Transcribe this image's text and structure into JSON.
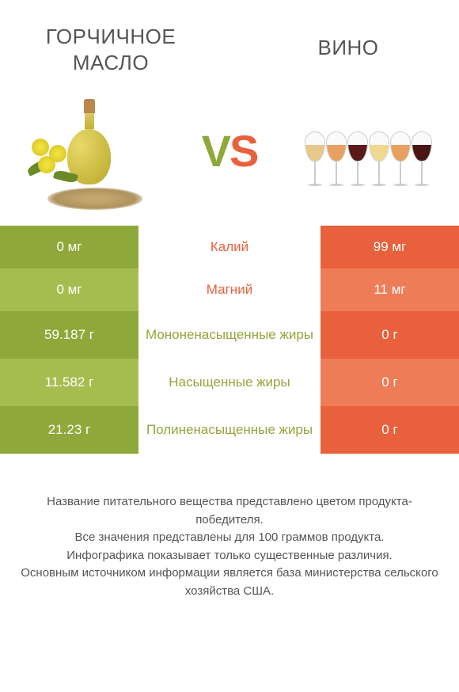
{
  "header": {
    "left_title": "ГОРЧИЧНОЕ МАСЛО",
    "right_title": "ВИНО",
    "vs_v": "V",
    "vs_s": "S"
  },
  "colors": {
    "green_dark": "#8fa83b",
    "green_light": "#a5bd4f",
    "orange_dark": "#e8613c",
    "orange_light": "#ee7d57",
    "text": "#555555",
    "white": "#ffffff"
  },
  "wine_liquids": [
    "#e8c88a",
    "#e8a060",
    "#5a1a1a",
    "#f0d890",
    "#e8a060",
    "#4a1515"
  ],
  "rows": [
    {
      "left": "0 мг",
      "mid": "Калий",
      "right": "99 мг",
      "winner": "right",
      "tall": false
    },
    {
      "left": "0 мг",
      "mid": "Магний",
      "right": "11 мг",
      "winner": "right",
      "tall": false
    },
    {
      "left": "59.187 г",
      "mid": "Мононенасыщенные жиры",
      "right": "0 г",
      "winner": "left",
      "tall": true
    },
    {
      "left": "11.582 г",
      "mid": "Насыщенные жиры",
      "right": "0 г",
      "winner": "left",
      "tall": true
    },
    {
      "left": "21.23 г",
      "mid": "Полиненасыщенные жиры",
      "right": "0 г",
      "winner": "left",
      "tall": true
    }
  ],
  "footer": {
    "line1": "Название питательного вещества представлено цветом продукта-победителя.",
    "line2": "Все значения представлены для 100 граммов продукта.",
    "line3": "Инфографика показывает только существенные различия.",
    "line4": "Основным источником информации является база министерства сельского хозяйства США."
  }
}
